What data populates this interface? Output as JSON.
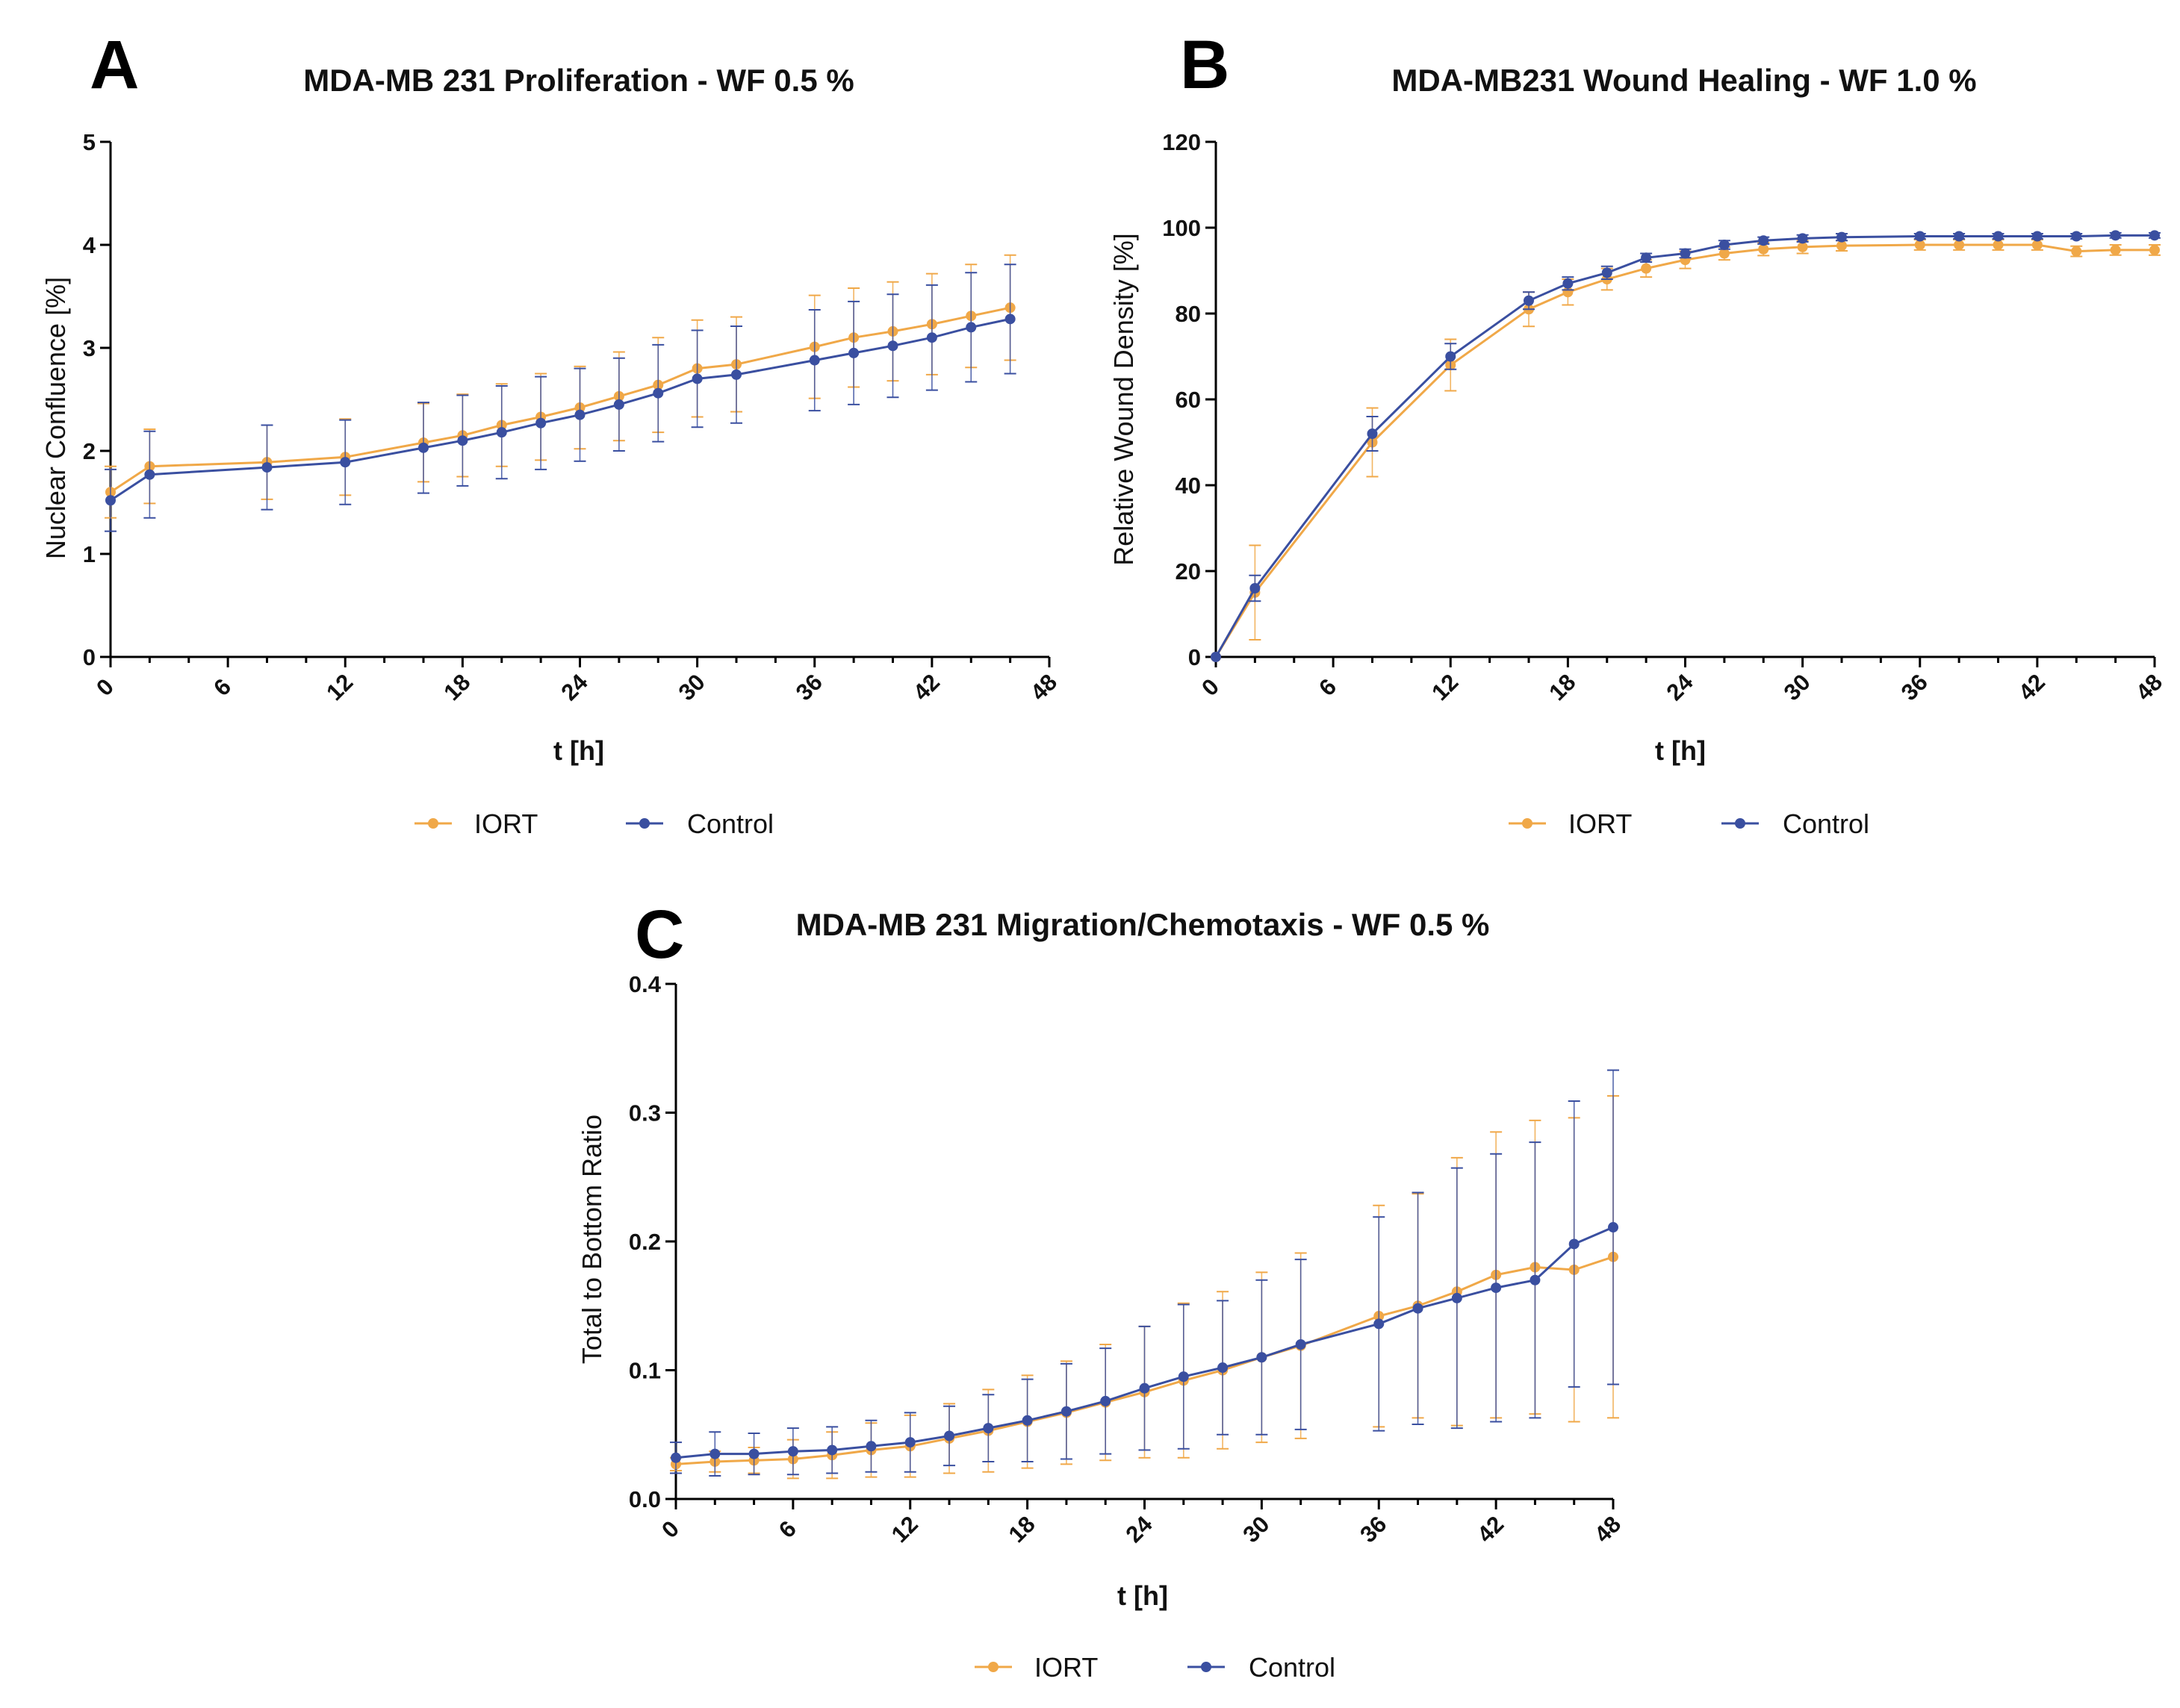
{
  "chart_data": [
    {
      "panel": "A",
      "type": "line",
      "title": "MDA-MB 231 Proliferation - WF 0.5 %",
      "xlabel": "t [h]",
      "ylabel": "Nuclear Confluence [%]",
      "xlim": [
        0,
        48
      ],
      "ylim": [
        0,
        5
      ],
      "xticks": [
        "0",
        "6",
        "12",
        "18",
        "24",
        "30",
        "36",
        "42",
        "48"
      ],
      "yticks": [
        "0",
        "1",
        "2",
        "3",
        "4",
        "5"
      ],
      "grid": false,
      "legend": "bottom",
      "series": [
        {
          "name": "IORT",
          "color": "#f0a848",
          "x": [
            0,
            2,
            8,
            12,
            16,
            18,
            20,
            22,
            24,
            26,
            28,
            30,
            32,
            36,
            38,
            40,
            42,
            44,
            46
          ],
          "y": [
            1.6,
            1.85,
            1.89,
            1.94,
            2.08,
            2.15,
            2.25,
            2.33,
            2.42,
            2.53,
            2.64,
            2.8,
            2.84,
            3.01,
            3.1,
            3.16,
            3.23,
            3.31,
            3.39
          ],
          "err": [
            0.25,
            0.36,
            0.36,
            0.37,
            0.38,
            0.4,
            0.4,
            0.42,
            0.4,
            0.43,
            0.46,
            0.47,
            0.46,
            0.5,
            0.48,
            0.48,
            0.49,
            0.5,
            0.51
          ]
        },
        {
          "name": "Control",
          "color": "#3a4fa0",
          "x": [
            0,
            2,
            8,
            12,
            16,
            18,
            20,
            22,
            24,
            26,
            28,
            30,
            32,
            36,
            38,
            40,
            42,
            44,
            46
          ],
          "y": [
            1.52,
            1.77,
            1.84,
            1.89,
            2.03,
            2.1,
            2.18,
            2.27,
            2.35,
            2.45,
            2.56,
            2.7,
            2.74,
            2.88,
            2.95,
            3.02,
            3.1,
            3.2,
            3.28
          ],
          "err": [
            0.3,
            0.42,
            0.41,
            0.41,
            0.44,
            0.44,
            0.45,
            0.45,
            0.45,
            0.45,
            0.47,
            0.47,
            0.47,
            0.49,
            0.5,
            0.5,
            0.51,
            0.53,
            0.53
          ]
        }
      ]
    },
    {
      "panel": "B",
      "type": "line",
      "title": "MDA-MB231 Wound  Healing - WF 1.0 %",
      "xlabel": "t [h]",
      "ylabel": "Relative  Wound  Density [%]",
      "xlim": [
        0,
        48
      ],
      "ylim": [
        0,
        120
      ],
      "xticks": [
        "0",
        "6",
        "12",
        "18",
        "24",
        "30",
        "36",
        "42",
        "48"
      ],
      "yticks": [
        "0",
        "20",
        "40",
        "60",
        "80",
        "100",
        "120"
      ],
      "grid": false,
      "legend": "bottom",
      "series": [
        {
          "name": "IORT",
          "color": "#f0a848",
          "x": [
            0,
            2,
            8,
            12,
            16,
            18,
            20,
            22,
            24,
            26,
            28,
            30,
            32,
            36,
            38,
            40,
            42,
            44,
            46,
            48
          ],
          "y": [
            0,
            15,
            50,
            68,
            81,
            85,
            88,
            90.5,
            92.5,
            94,
            95,
            95.5,
            95.8,
            96,
            96,
            96,
            96,
            94.5,
            94.8,
            94.8
          ],
          "err": [
            0,
            11,
            8,
            6,
            4,
            3,
            2.5,
            2,
            2,
            1.5,
            1.5,
            1.5,
            1.2,
            1.2,
            1.2,
            1.2,
            1.2,
            1.2,
            1.2,
            1.2
          ]
        },
        {
          "name": "Control",
          "color": "#3a4fa0",
          "x": [
            0,
            2,
            8,
            12,
            16,
            18,
            20,
            22,
            24,
            26,
            28,
            30,
            32,
            36,
            38,
            40,
            42,
            44,
            46,
            48
          ],
          "y": [
            0,
            16,
            52,
            70,
            83,
            87,
            89.5,
            93,
            94,
            96,
            97,
            97.5,
            97.8,
            98,
            98,
            98,
            98,
            98,
            98.2,
            98.2
          ],
          "err": [
            0,
            3,
            4,
            3,
            2,
            1.5,
            1.5,
            1,
            1,
            1,
            0.8,
            0.8,
            0.8,
            0.6,
            0.6,
            0.6,
            0.6,
            0.6,
            0.6,
            0.6
          ]
        }
      ]
    },
    {
      "panel": "C",
      "type": "line",
      "title": "MDA-MB 231 Migration/Chemotaxis - WF 0.5 %",
      "xlabel": "t [h]",
      "ylabel": "Total to Bottom  Ratio",
      "xlim": [
        0,
        48
      ],
      "ylim": [
        0,
        0.4
      ],
      "xticks": [
        "0",
        "6",
        "12",
        "18",
        "24",
        "30",
        "36",
        "42",
        "48"
      ],
      "yticks": [
        "0.0",
        "0.1",
        "0.2",
        "0.3",
        "0.4"
      ],
      "grid": false,
      "legend": "bottom",
      "series": [
        {
          "name": "IORT",
          "color": "#f0a848",
          "x": [
            0,
            2,
            4,
            6,
            8,
            10,
            12,
            14,
            16,
            18,
            20,
            22,
            24,
            26,
            28,
            30,
            32,
            36,
            38,
            40,
            42,
            44,
            46,
            48
          ],
          "y": [
            0.027,
            0.029,
            0.03,
            0.031,
            0.034,
            0.038,
            0.041,
            0.047,
            0.053,
            0.06,
            0.067,
            0.075,
            0.083,
            0.092,
            0.1,
            0.11,
            0.119,
            0.142,
            0.15,
            0.161,
            0.174,
            0.18,
            0.178,
            0.188
          ],
          "err": [
            0.005,
            0.008,
            0.01,
            0.015,
            0.018,
            0.021,
            0.024,
            0.027,
            0.032,
            0.036,
            0.04,
            0.045,
            0.051,
            0.06,
            0.061,
            0.066,
            0.072,
            0.086,
            0.087,
            0.104,
            0.111,
            0.114,
            0.118,
            0.125
          ]
        },
        {
          "name": "Control",
          "color": "#3a4fa0",
          "x": [
            0,
            2,
            4,
            6,
            8,
            10,
            12,
            14,
            16,
            18,
            20,
            22,
            24,
            26,
            28,
            30,
            32,
            36,
            38,
            40,
            42,
            44,
            46,
            48
          ],
          "y": [
            0.032,
            0.035,
            0.035,
            0.037,
            0.038,
            0.041,
            0.044,
            0.049,
            0.055,
            0.061,
            0.068,
            0.076,
            0.086,
            0.095,
            0.102,
            0.11,
            0.12,
            0.136,
            0.148,
            0.156,
            0.164,
            0.17,
            0.198,
            0.211
          ],
          "err": [
            0.012,
            0.017,
            0.016,
            0.018,
            0.018,
            0.02,
            0.023,
            0.023,
            0.026,
            0.032,
            0.037,
            0.041,
            0.048,
            0.056,
            0.052,
            0.06,
            0.066,
            0.083,
            0.09,
            0.101,
            0.104,
            0.107,
            0.111,
            0.122
          ]
        }
      ]
    }
  ]
}
